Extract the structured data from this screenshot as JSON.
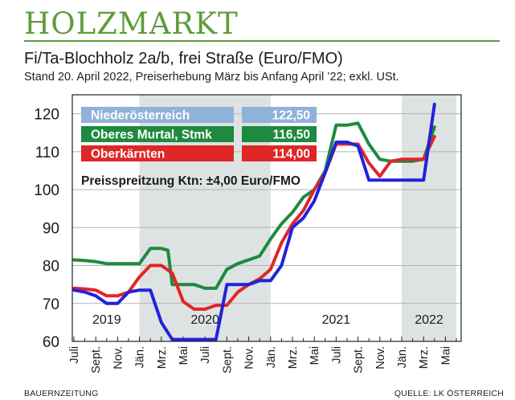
{
  "header": {
    "masthead": "HOLZMARKT",
    "title": "Fi/Ta-Blochholz 2a/b, frei Straße (Euro/FMO)",
    "subtitle": "Stand 20. April 2022, Preiserhebung März bis Anfang April ’22; exkl. USt."
  },
  "footer": {
    "left": "BAUERNZEITUNG",
    "right": "QUELLE: LK ÖSTERREICH"
  },
  "colors": {
    "niederoesterreich": "#2222dd",
    "murtal": "#1e8a3f",
    "kaernten": "#e02626",
    "shade": "#dde3e2",
    "legend_blue_bg": "#8fb2d8",
    "grid": "#b3b3b3"
  },
  "chart_data": {
    "type": "line",
    "ylim": [
      60,
      125
    ],
    "yticks": [
      60,
      70,
      80,
      90,
      100,
      110,
      120
    ],
    "xlim": [
      0,
      35
    ],
    "x_tick_labels": [
      {
        "i": 0,
        "label": "Juli"
      },
      {
        "i": 2,
        "label": "Sept."
      },
      {
        "i": 4,
        "label": "Nov."
      },
      {
        "i": 6,
        "label": "Jän."
      },
      {
        "i": 8,
        "label": "Mrz."
      },
      {
        "i": 10,
        "label": "Mai"
      },
      {
        "i": 12,
        "label": "Juli"
      },
      {
        "i": 14,
        "label": "Sept."
      },
      {
        "i": 16,
        "label": "Nov."
      },
      {
        "i": 18,
        "label": "Jän."
      },
      {
        "i": 20,
        "label": "Mrz."
      },
      {
        "i": 22,
        "label": "Mai"
      },
      {
        "i": 24,
        "label": "Juli"
      },
      {
        "i": 26,
        "label": "Sept."
      },
      {
        "i": 28,
        "label": "Nov."
      },
      {
        "i": 30,
        "label": "Jän."
      },
      {
        "i": 32,
        "label": "Mrz."
      },
      {
        "i": 34,
        "label": "Mai"
      }
    ],
    "shaded_ranges": [
      [
        6,
        18
      ],
      [
        30,
        35
      ]
    ],
    "year_labels": [
      {
        "label": "2019",
        "x": 3
      },
      {
        "label": "2020",
        "x": 12
      },
      {
        "label": "2021",
        "x": 24
      },
      {
        "label": "2022",
        "x": 32.5
      }
    ],
    "series": [
      {
        "name": "Oberes Murtal, Stmk",
        "value_label": "116,50",
        "color_key": "murtal",
        "points": [
          [
            0,
            81.5
          ],
          [
            1,
            81.3
          ],
          [
            2,
            81.0
          ],
          [
            3,
            80.5
          ],
          [
            4,
            80.5
          ],
          [
            5,
            80.5
          ],
          [
            6,
            80.5
          ],
          [
            7,
            84.5
          ],
          [
            8,
            84.5
          ],
          [
            8.6,
            84.0
          ],
          [
            9,
            75.0
          ],
          [
            10,
            75.0
          ],
          [
            11,
            75.0
          ],
          [
            12,
            74.0
          ],
          [
            13,
            74.0
          ],
          [
            14,
            79.0
          ],
          [
            15,
            80.5
          ],
          [
            16,
            81.5
          ],
          [
            17,
            82.5
          ],
          [
            18,
            87.0
          ],
          [
            19,
            91.0
          ],
          [
            20,
            94.0
          ],
          [
            21,
            98.0
          ],
          [
            22,
            100.0
          ],
          [
            23,
            105.0
          ],
          [
            24,
            117.0
          ],
          [
            25,
            117.0
          ],
          [
            26,
            117.5
          ],
          [
            27,
            112.0
          ],
          [
            28,
            108.0
          ],
          [
            29,
            107.5
          ],
          [
            30,
            107.5
          ],
          [
            31,
            107.5
          ],
          [
            32,
            108.0
          ],
          [
            33,
            116.5
          ]
        ]
      },
      {
        "name": "Oberkärnten",
        "value_label": "114,00",
        "color_key": "kaernten",
        "points": [
          [
            0,
            74.0
          ],
          [
            1,
            73.8
          ],
          [
            2,
            73.5
          ],
          [
            3,
            72.0
          ],
          [
            4,
            72.0
          ],
          [
            5,
            73.0
          ],
          [
            6,
            77.0
          ],
          [
            7,
            80.0
          ],
          [
            8,
            80.0
          ],
          [
            9,
            78.0
          ],
          [
            10,
            70.5
          ],
          [
            11,
            68.5
          ],
          [
            12,
            68.5
          ],
          [
            13,
            69.5
          ],
          [
            14,
            69.5
          ],
          [
            15,
            73.0
          ],
          [
            16,
            75.0
          ],
          [
            17,
            76.5
          ],
          [
            18,
            79.0
          ],
          [
            19,
            86.0
          ],
          [
            20,
            91.0
          ],
          [
            21,
            94.5
          ],
          [
            22,
            100.0
          ],
          [
            23,
            104.5
          ],
          [
            24,
            112.0
          ],
          [
            25,
            112.0
          ],
          [
            26,
            112.0
          ],
          [
            27,
            107.0
          ],
          [
            28,
            103.5
          ],
          [
            29,
            107.5
          ],
          [
            30,
            108.0
          ],
          [
            31,
            108.0
          ],
          [
            32,
            108.0
          ],
          [
            33,
            114.0
          ]
        ]
      },
      {
        "name": "Niederösterreich",
        "value_label": "122,50",
        "color_key": "niederoesterreich",
        "points": [
          [
            0,
            73.5
          ],
          [
            1,
            73.0
          ],
          [
            2,
            72.0
          ],
          [
            3,
            70.0
          ],
          [
            4,
            70.0
          ],
          [
            5,
            73.0
          ],
          [
            6,
            73.5
          ],
          [
            7,
            73.5
          ],
          [
            8,
            65.0
          ],
          [
            9,
            60.5
          ],
          [
            10,
            60.5
          ],
          [
            11,
            60.5
          ],
          [
            12,
            60.5
          ],
          [
            13,
            60.5
          ],
          [
            14,
            75.0
          ],
          [
            15,
            75.0
          ],
          [
            16,
            75.0
          ],
          [
            17,
            76.0
          ],
          [
            18,
            76.0
          ],
          [
            19,
            80.0
          ],
          [
            20,
            90.0
          ],
          [
            21,
            92.5
          ],
          [
            22,
            97.0
          ],
          [
            23,
            104.5
          ],
          [
            24,
            112.5
          ],
          [
            25,
            112.5
          ],
          [
            26,
            111.5
          ],
          [
            27,
            102.5
          ],
          [
            28,
            102.5
          ],
          [
            29,
            102.5
          ],
          [
            30,
            102.5
          ],
          [
            31,
            102.5
          ],
          [
            32,
            102.5
          ],
          [
            33,
            122.5
          ]
        ]
      }
    ],
    "legend": [
      {
        "label": "Niederösterreich",
        "value": "122,50",
        "color_key": "legend_blue_bg"
      },
      {
        "label": "Oberes Murtal, Stmk",
        "value": "116,50",
        "color_key": "murtal"
      },
      {
        "label": "Oberkärnten",
        "value": "114,00",
        "color_key": "kaernten"
      }
    ],
    "annotation": "Preisspreitzung Ktn: ±4,00 Euro/FMO"
  }
}
